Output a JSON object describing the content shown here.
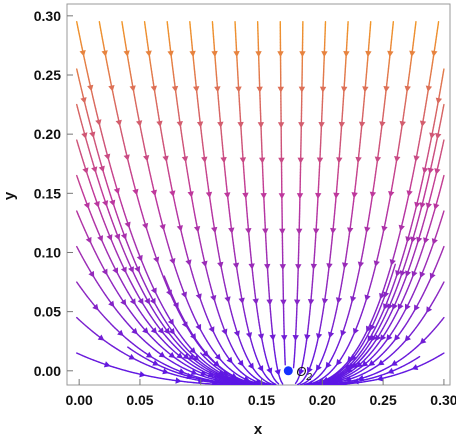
{
  "chart_data": {
    "type": "streamplot",
    "title": "",
    "xlabel": "x",
    "ylabel": "y",
    "xlim": [
      -0.01,
      0.305
    ],
    "ylim": [
      -0.012,
      0.31
    ],
    "x_ticks": [
      "0.00",
      "0.05",
      "0.10",
      "0.15",
      "0.20",
      "0.25",
      "0.30"
    ],
    "y_ticks": [
      "0.00",
      "0.05",
      "0.10",
      "0.15",
      "0.20",
      "0.25",
      "0.30"
    ],
    "frame": true,
    "grid": false,
    "legend": "none",
    "color_scheme": {
      "low": "#5b16e6",
      "mid": "#c0399a",
      "high": "#f6a01c",
      "by": "y"
    },
    "equilibrium": {
      "label": "O",
      "subscript": "2",
      "x": 0.172,
      "y": 0.0,
      "color": "#1530ff"
    }
  }
}
